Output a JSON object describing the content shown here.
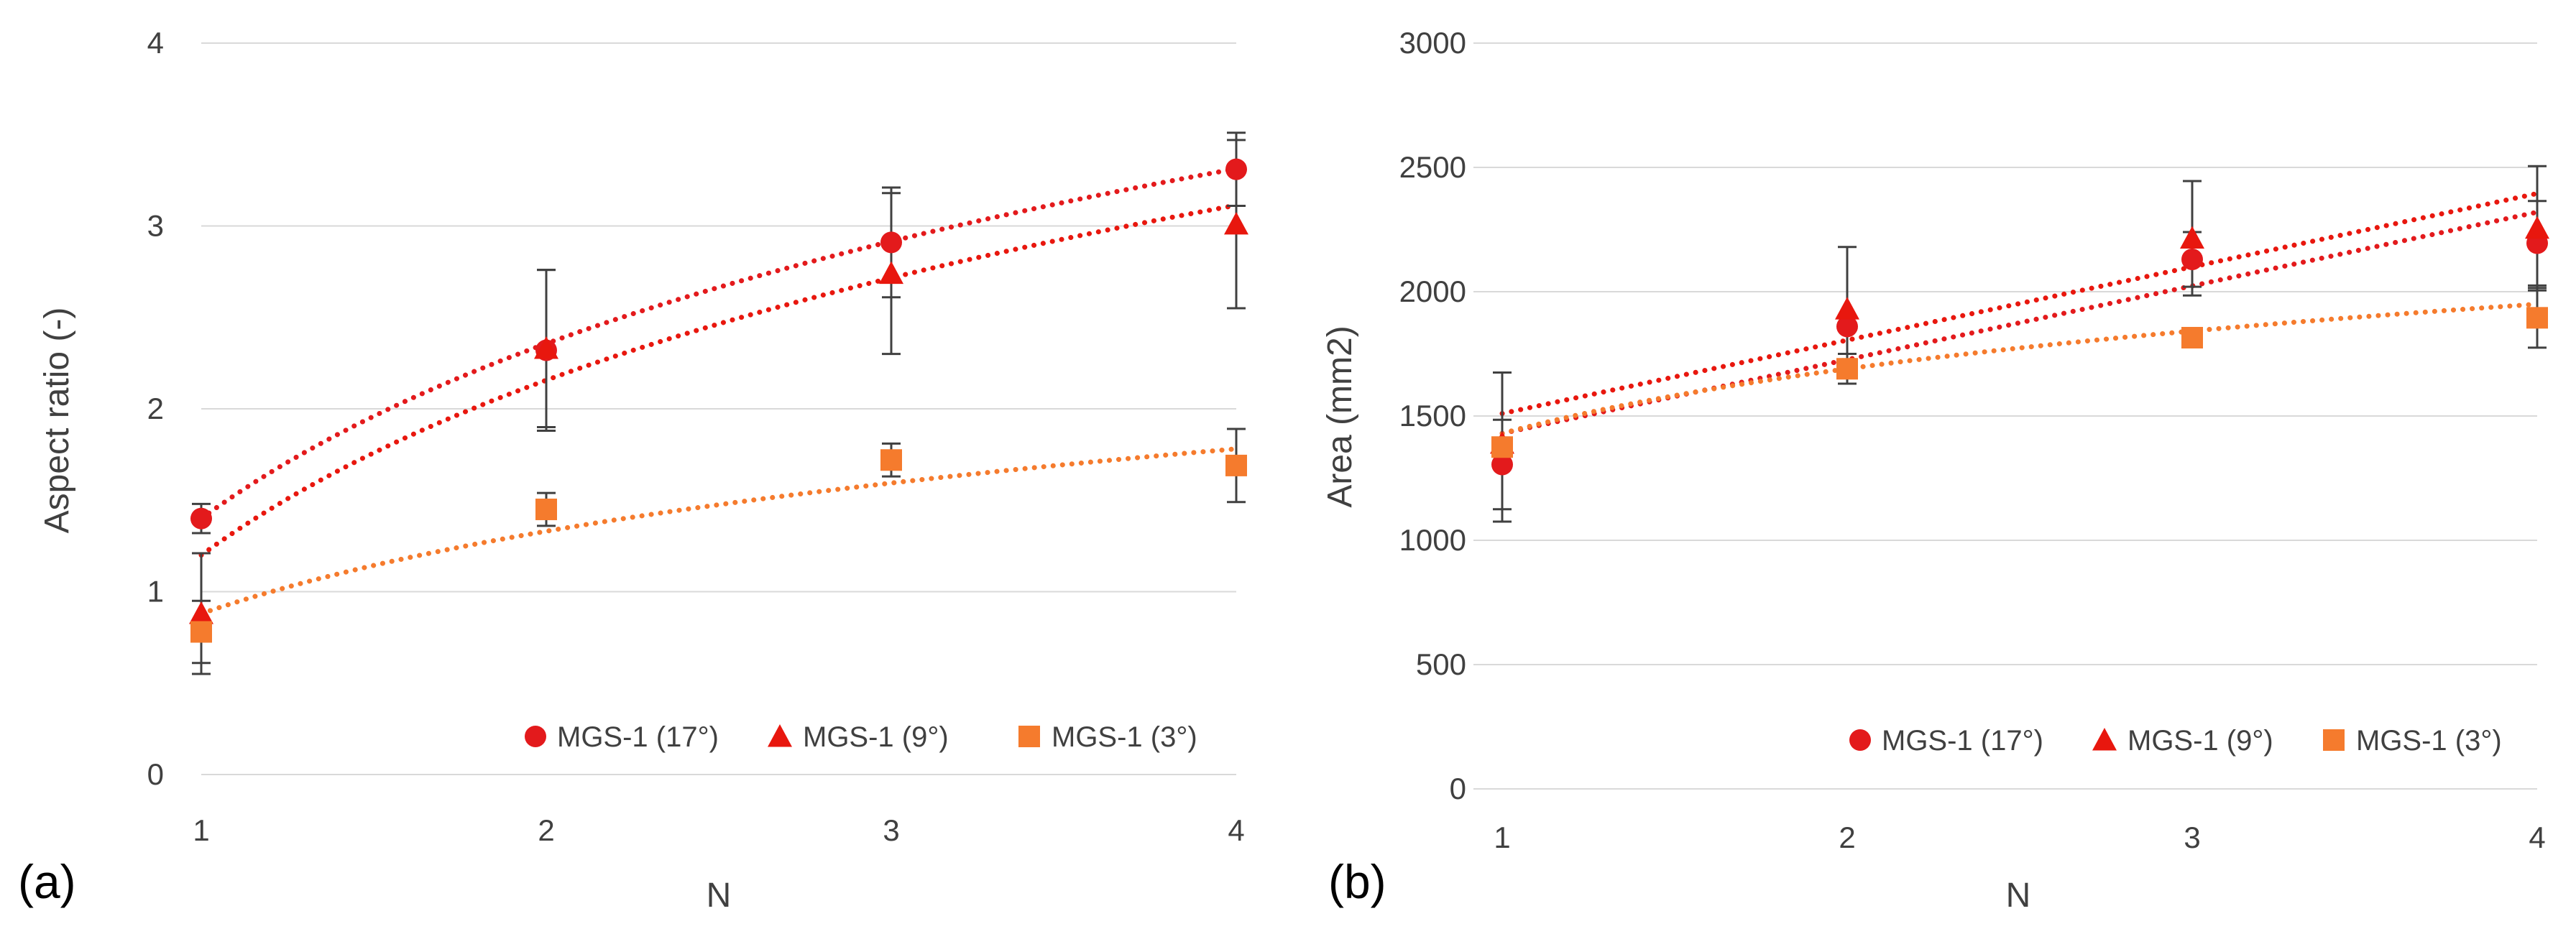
{
  "figure": {
    "panel_labels": [
      "(a)",
      "(b)"
    ]
  },
  "colors": {
    "mgs17": "#e31a1c",
    "mgs9": "#e8170e",
    "mgs3": "#f57b2d",
    "grid": "#d9d9d9",
    "error_bar": "#404040",
    "text": "#404040"
  },
  "chart_data": [
    {
      "type": "scatter",
      "panel": "(a)",
      "title": "",
      "xlabel": "N",
      "ylabel": "Aspect ratio (-)",
      "x": [
        1,
        2,
        3,
        4
      ],
      "x_ticks": [
        "1",
        "2",
        "3",
        "4"
      ],
      "y_ticks": [
        "0",
        "1",
        "2",
        "3",
        "4"
      ],
      "xlim": [
        1,
        4
      ],
      "ylim": [
        0,
        4
      ],
      "grid": true,
      "legend_position": "bottom-right",
      "series": [
        {
          "name": "MGS-1 (17°)",
          "marker": "circle",
          "color_key": "mgs17",
          "values": [
            1.4,
            2.32,
            2.91,
            3.31
          ],
          "errors": [
            0.08,
            0.44,
            0.3,
            0.2
          ],
          "trend": {
            "type": "log",
            "a": 1.4,
            "b": 1.38,
            "extend_to": 4
          }
        },
        {
          "name": "MGS-1 (9°)",
          "marker": "triangle",
          "color_key": "mgs9",
          "values": [
            0.88,
            2.33,
            2.74,
            3.01
          ],
          "errors": [
            0.33,
            0.43,
            0.44,
            0.46
          ],
          "trend": {
            "type": "log",
            "a": 1.2,
            "b": 1.38,
            "extend_to": 4
          }
        },
        {
          "name": "MGS-1 (3°)",
          "marker": "square",
          "color_key": "mgs3",
          "values": [
            0.78,
            1.45,
            1.72,
            1.69
          ],
          "errors": [
            0.17,
            0.09,
            0.09,
            0.2
          ],
          "trend": {
            "type": "log",
            "a": 0.88,
            "b": 0.65,
            "extend_to": 4
          }
        }
      ]
    },
    {
      "type": "scatter",
      "panel": "(b)",
      "title": "",
      "xlabel": "N",
      "ylabel": "Area (mm2)",
      "x": [
        1,
        2,
        3,
        4
      ],
      "x_ticks": [
        "1",
        "2",
        "3",
        "4"
      ],
      "y_ticks": [
        "0",
        "500",
        "1000",
        "1500",
        "2000",
        "2500",
        "3000"
      ],
      "xlim": [
        1,
        4
      ],
      "ylim": [
        0,
        3000
      ],
      "grid": true,
      "legend_position": "bottom-right",
      "series": [
        {
          "name": "MGS-1 (17°)",
          "marker": "circle",
          "color_key": "mgs17",
          "values": [
            1305,
            1860,
            2130,
            2195
          ],
          "errors": [
            180,
            0,
            110,
            170
          ],
          "trend": {
            "type": "linear",
            "y0": 1430,
            "y1": 2320,
            "extend_to": 4
          }
        },
        {
          "name": "MGS-1 (9°)",
          "marker": "triangle",
          "color_key": "mgs9",
          "values": [
            1390,
            1930,
            2215,
            2255
          ],
          "errors": [
            0,
            250,
            230,
            250
          ],
          "trend": {
            "type": "linear",
            "y0": 1510,
            "y1": 2395,
            "extend_to": 4
          }
        },
        {
          "name": "MGS-1 (3°)",
          "marker": "square",
          "color_key": "mgs3",
          "values": [
            1375,
            1690,
            1815,
            1895
          ],
          "errors": [
            300,
            60,
            0,
            120
          ],
          "trend": {
            "type": "log",
            "a": 1430,
            "b": 375,
            "extend_to": 4
          }
        }
      ]
    }
  ]
}
